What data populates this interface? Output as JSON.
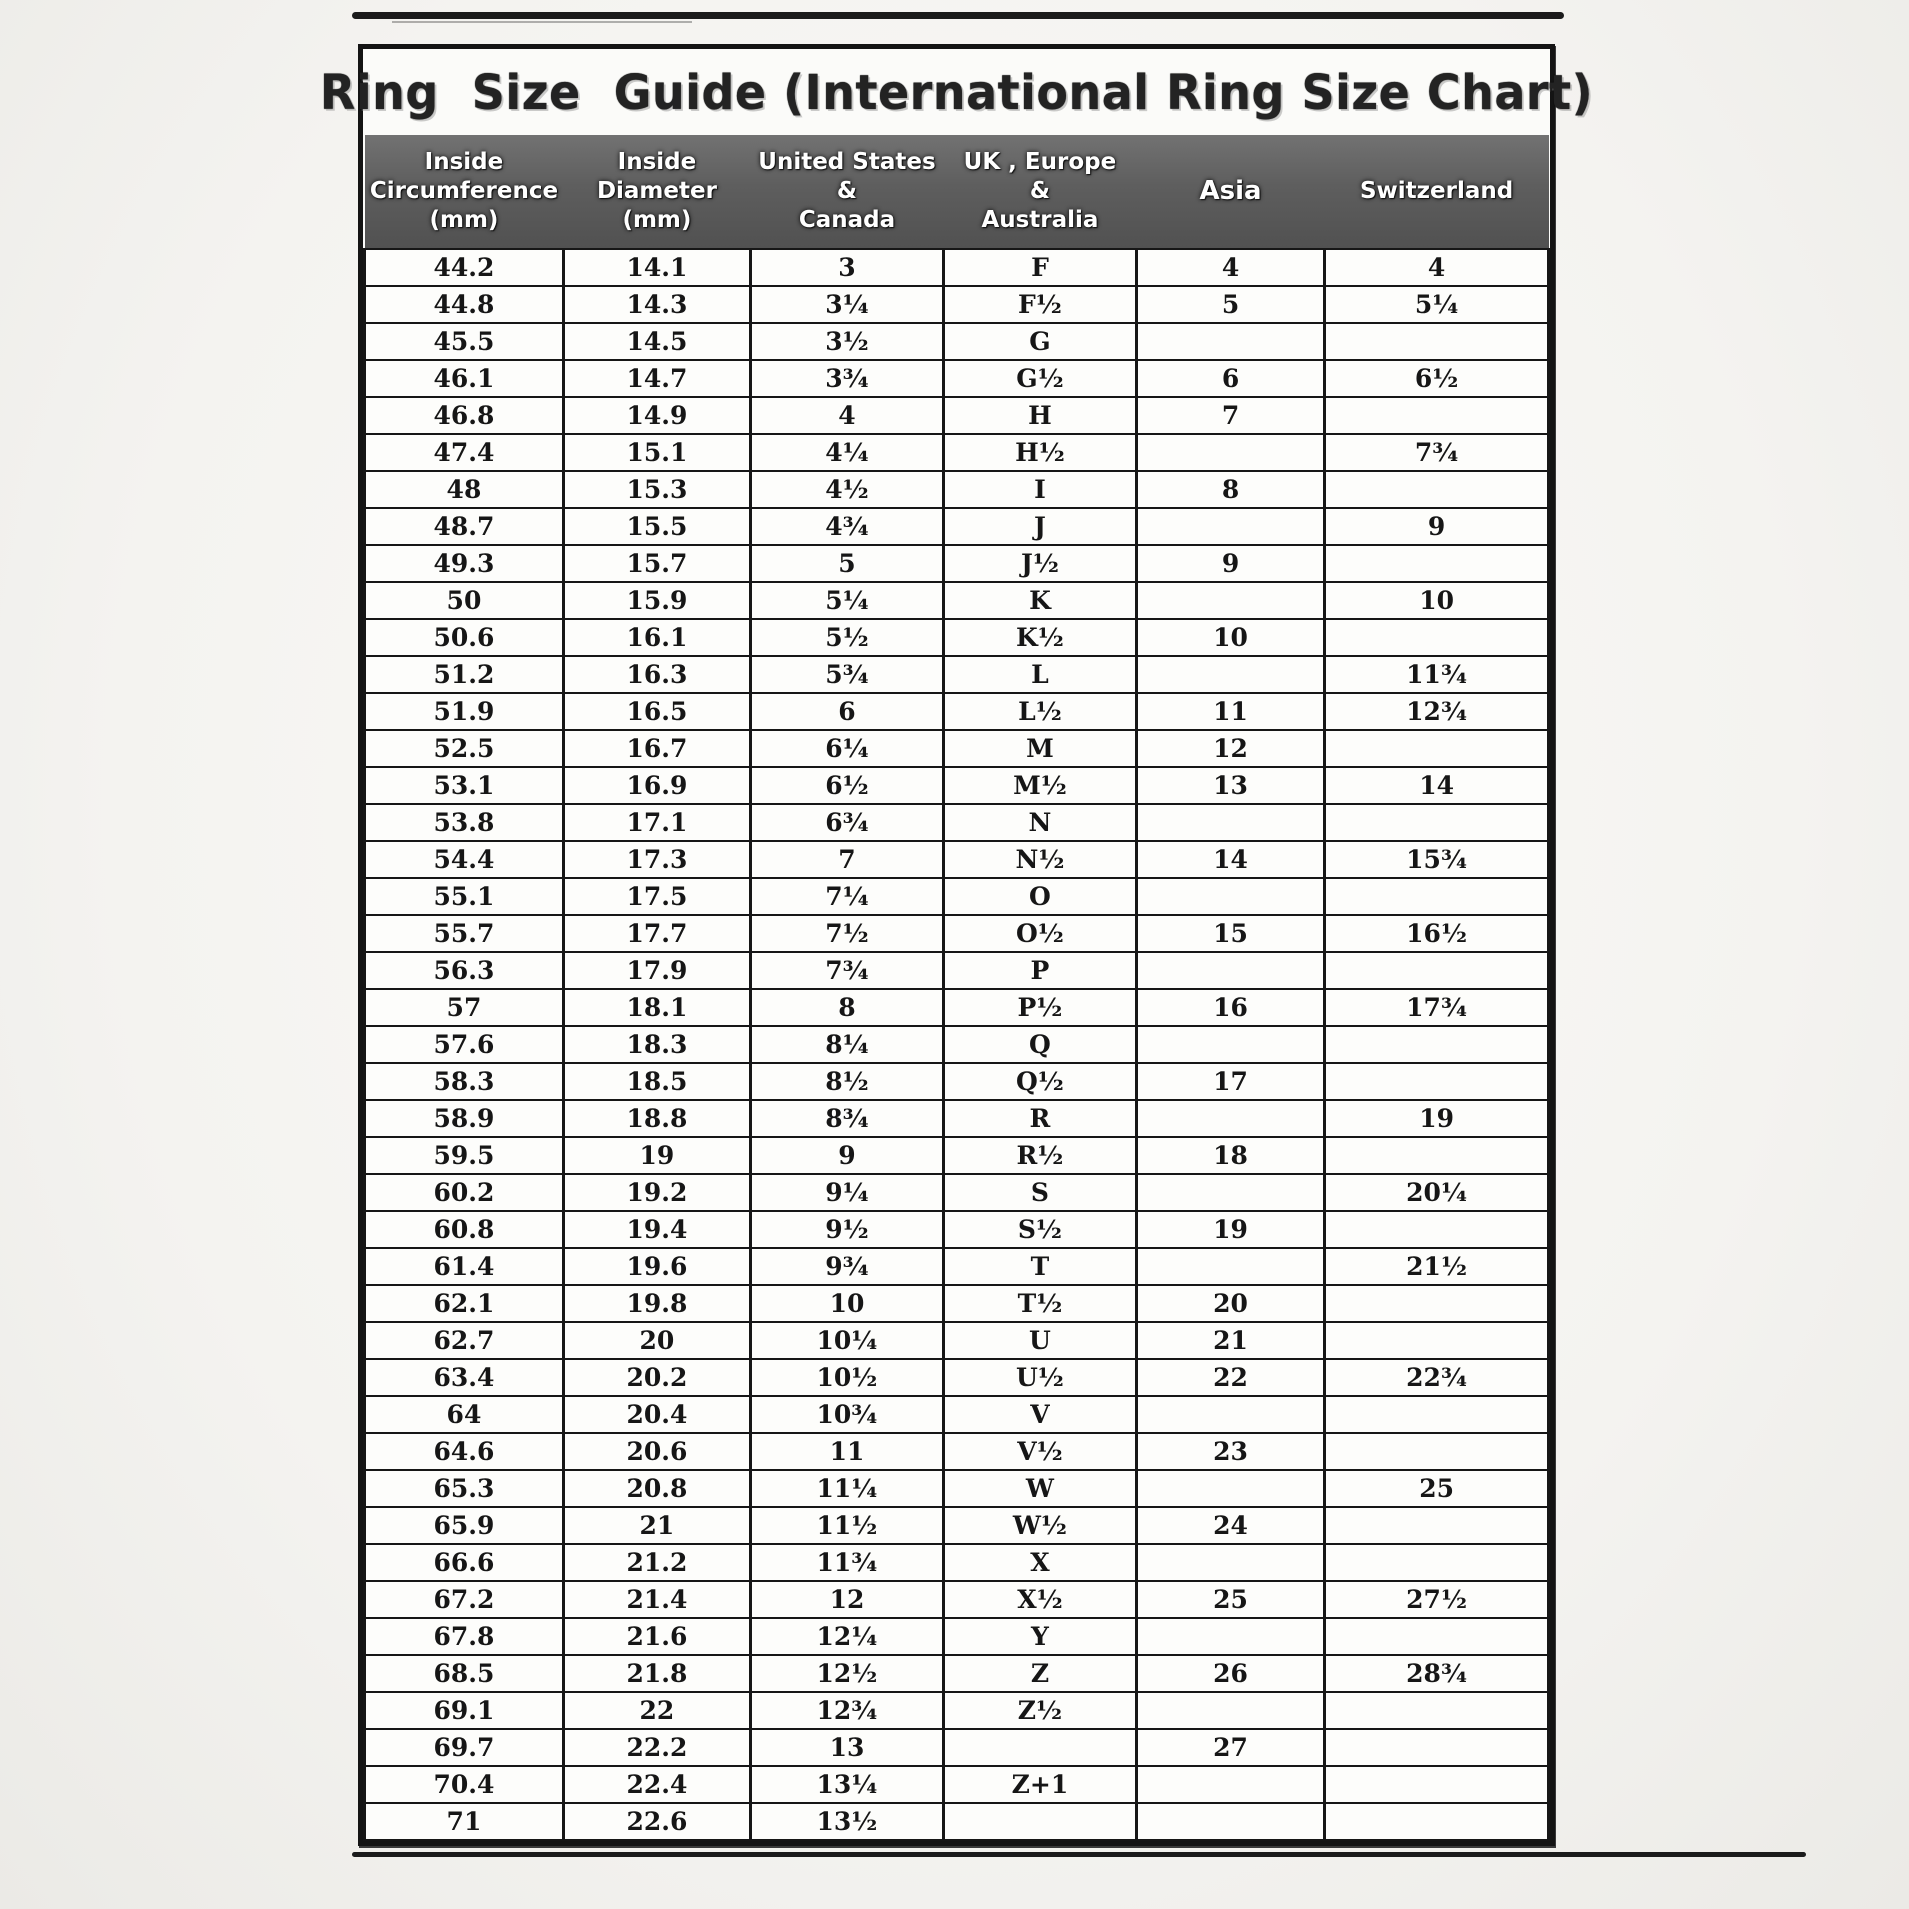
{
  "title": "Ring  Size  Guide (International Ring Size Chart)",
  "table": {
    "columns": [
      {
        "label": "Inside\nCircumference\n(mm)"
      },
      {
        "label": "Inside\nDiameter\n(mm)"
      },
      {
        "label": "United States\n&\nCanada"
      },
      {
        "label": "UK , Europe\n&\nAustralia"
      },
      {
        "label": "Asia"
      },
      {
        "label": "Switzerland"
      }
    ],
    "rows": [
      [
        "44.2",
        "14.1",
        "3",
        "F",
        "4",
        "4"
      ],
      [
        "44.8",
        "14.3",
        "3¼",
        "F½",
        "5",
        "5¼"
      ],
      [
        "45.5",
        "14.5",
        "3½",
        "G",
        "",
        ""
      ],
      [
        "46.1",
        "14.7",
        "3¾",
        "G½",
        "6",
        "6½"
      ],
      [
        "46.8",
        "14.9",
        "4",
        "H",
        "7",
        ""
      ],
      [
        "47.4",
        "15.1",
        "4¼",
        "H½",
        "",
        "7¾"
      ],
      [
        "48",
        "15.3",
        "4½",
        "I",
        "8",
        ""
      ],
      [
        "48.7",
        "15.5",
        "4¾",
        "J",
        "",
        "9"
      ],
      [
        "49.3",
        "15.7",
        "5",
        "J½",
        "9",
        ""
      ],
      [
        "50",
        "15.9",
        "5¼",
        "K",
        "",
        "10"
      ],
      [
        "50.6",
        "16.1",
        "5½",
        "K½",
        "10",
        ""
      ],
      [
        "51.2",
        "16.3",
        "5¾",
        "L",
        "",
        "11¾"
      ],
      [
        "51.9",
        "16.5",
        "6",
        "L½",
        "11",
        "12¾"
      ],
      [
        "52.5",
        "16.7",
        "6¼",
        "M",
        "12",
        ""
      ],
      [
        "53.1",
        "16.9",
        "6½",
        "M½",
        "13",
        "14"
      ],
      [
        "53.8",
        "17.1",
        "6¾",
        "N",
        "",
        ""
      ],
      [
        "54.4",
        "17.3",
        "7",
        "N½",
        "14",
        "15¾"
      ],
      [
        "55.1",
        "17.5",
        "7¼",
        "O",
        "",
        ""
      ],
      [
        "55.7",
        "17.7",
        "7½",
        "O½",
        "15",
        "16½"
      ],
      [
        "56.3",
        "17.9",
        "7¾",
        "P",
        "",
        ""
      ],
      [
        "57",
        "18.1",
        "8",
        "P½",
        "16",
        "17¾"
      ],
      [
        "57.6",
        "18.3",
        "8¼",
        "Q",
        "",
        ""
      ],
      [
        "58.3",
        "18.5",
        "8½",
        "Q½",
        "17",
        ""
      ],
      [
        "58.9",
        "18.8",
        "8¾",
        "R",
        "",
        "19"
      ],
      [
        "59.5",
        "19",
        "9",
        "R½",
        "18",
        ""
      ],
      [
        "60.2",
        "19.2",
        "9¼",
        "S",
        "",
        "20¼"
      ],
      [
        "60.8",
        "19.4",
        "9½",
        "S½",
        "19",
        ""
      ],
      [
        "61.4",
        "19.6",
        "9¾",
        "T",
        "",
        "21½"
      ],
      [
        "62.1",
        "19.8",
        "10",
        "T½",
        "20",
        ""
      ],
      [
        "62.7",
        "20",
        "10¼",
        "U",
        "21",
        ""
      ],
      [
        "63.4",
        "20.2",
        "10½",
        "U½",
        "22",
        "22¾"
      ],
      [
        "64",
        "20.4",
        "10¾",
        "V",
        "",
        ""
      ],
      [
        "64.6",
        "20.6",
        "11",
        "V½",
        "23",
        ""
      ],
      [
        "65.3",
        "20.8",
        "11¼",
        "W",
        "",
        "25"
      ],
      [
        "65.9",
        "21",
        "11½",
        "W½",
        "24",
        ""
      ],
      [
        "66.6",
        "21.2",
        "11¾",
        "X",
        "",
        ""
      ],
      [
        "67.2",
        "21.4",
        "12",
        "X½",
        "25",
        "27½"
      ],
      [
        "67.8",
        "21.6",
        "12¼",
        "Y",
        "",
        ""
      ],
      [
        "68.5",
        "21.8",
        "12½",
        "Z",
        "26",
        "28¾"
      ],
      [
        "69.1",
        "22",
        "12¾",
        "Z½",
        "",
        ""
      ],
      [
        "69.7",
        "22.2",
        "13",
        "",
        "27",
        ""
      ],
      [
        "70.4",
        "22.4",
        "13¼",
        "Z+1",
        "",
        ""
      ],
      [
        "71",
        "22.6",
        "13½",
        "",
        "",
        ""
      ]
    ]
  }
}
